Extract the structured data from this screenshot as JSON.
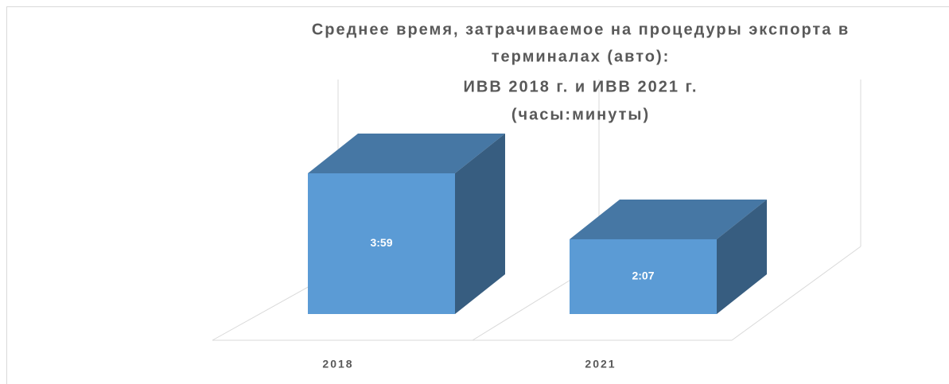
{
  "chart_data": {
    "type": "bar3d",
    "title": [
      "Среднее время, затрачиваемое на процедуры экспорта в",
      "терминалах (авто):",
      "ИВВ 2018 г. и ИВВ 2021 г.",
      "(часы:минуты)"
    ],
    "categories": [
      "2018",
      "2021"
    ],
    "values": [
      239,
      127
    ],
    "value_labels": [
      "3:59",
      "2:07"
    ],
    "color": "#5b9bd5"
  }
}
